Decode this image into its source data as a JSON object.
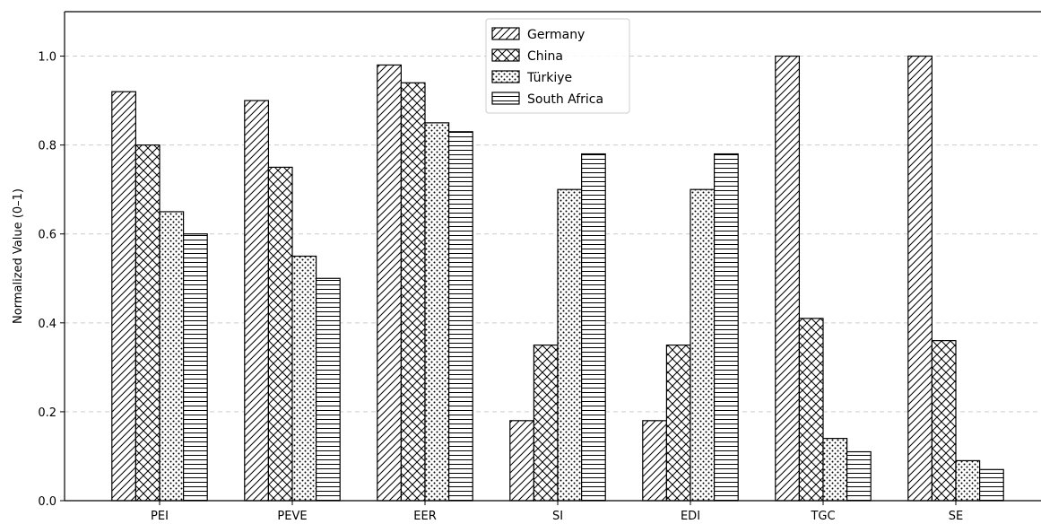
{
  "chart_data": {
    "type": "bar",
    "title": "",
    "xlabel": "",
    "ylabel": "Normalized Value (0–1)",
    "categories": [
      "PEI",
      "PEVE",
      "EER",
      "SI",
      "EDI",
      "TGC",
      "SE"
    ],
    "series": [
      {
        "name": "Germany",
        "pattern": "diagonal-hatch",
        "values": [
          0.92,
          0.9,
          0.98,
          0.18,
          0.18,
          1.0,
          1.0
        ]
      },
      {
        "name": "China",
        "pattern": "cross-hatch",
        "values": [
          0.8,
          0.75,
          0.94,
          0.35,
          0.35,
          0.41,
          0.36
        ]
      },
      {
        "name": "Türkiye",
        "pattern": "dots",
        "values": [
          0.65,
          0.55,
          0.85,
          0.7,
          0.7,
          0.14,
          0.09
        ]
      },
      {
        "name": "South Africa",
        "pattern": "horizontal-lines",
        "values": [
          0.6,
          0.5,
          0.83,
          0.78,
          0.78,
          0.11,
          0.07
        ]
      }
    ],
    "ylim": [
      0,
      1.1
    ],
    "yticks": [
      "0.0",
      "0.2",
      "0.4",
      "0.6",
      "0.8",
      "1.0"
    ],
    "grid": "horizontal-dashed",
    "legend_position": "top-center",
    "colors": {
      "bar_fill": "#ffffff",
      "bar_edge": "#000000",
      "grid": "#cccccc"
    }
  }
}
